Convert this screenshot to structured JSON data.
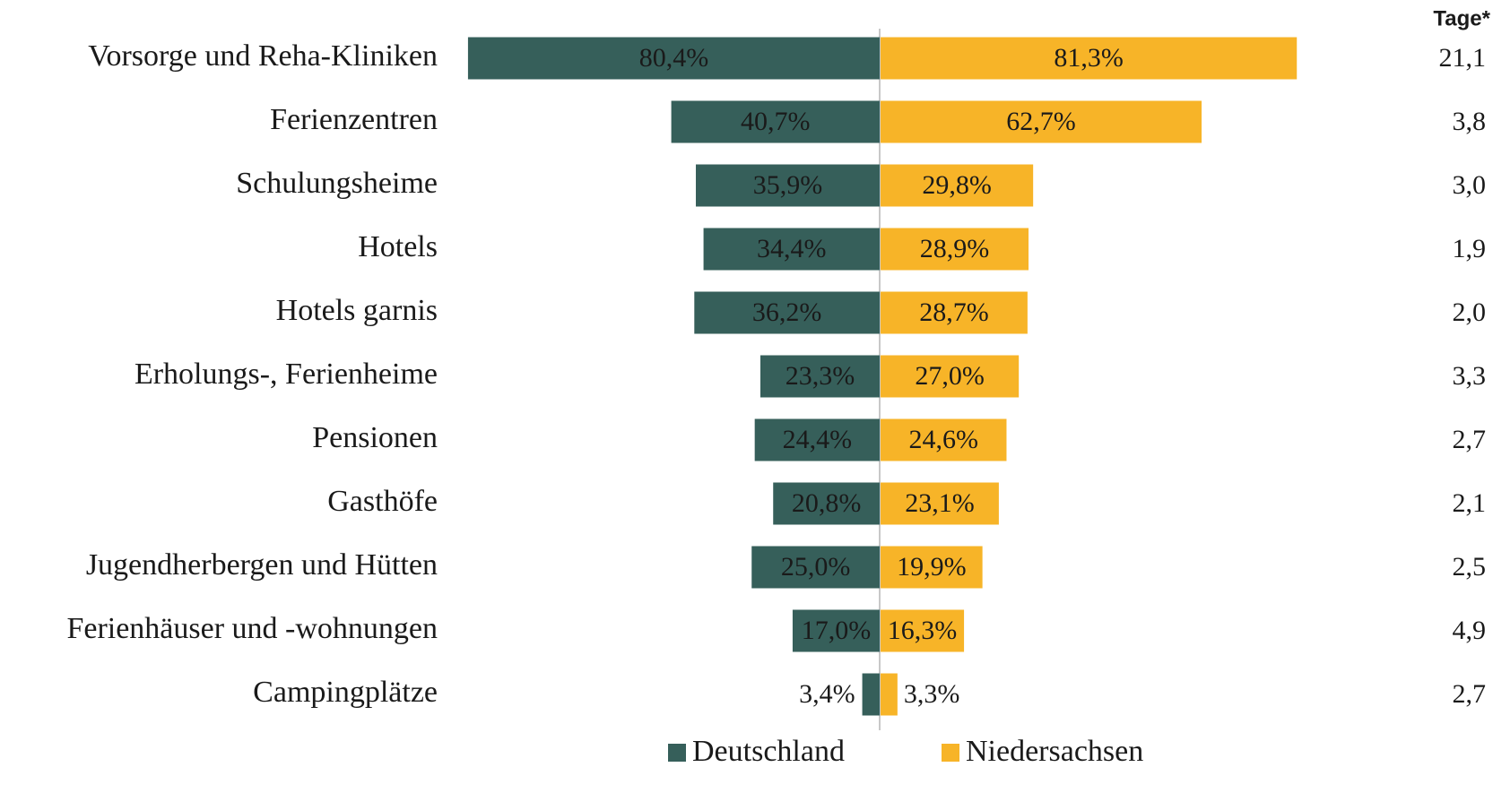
{
  "chart_data": {
    "type": "diverging-bar",
    "categories": [
      "Vorsorge und Reha-Kliniken",
      "Ferienzentren",
      "Schulungsheime",
      "Hotels",
      "Hotels garnis",
      "Erholungs-, Ferienheime",
      "Pensionen",
      "Gasthöfe",
      "Jugendherbergen und Hütten",
      "Ferienhäuser und -wohnungen",
      "Campingplätze"
    ],
    "series": [
      {
        "name": "Deutschland",
        "color": "#365f5a",
        "values": [
          80.4,
          40.7,
          35.9,
          34.4,
          36.2,
          23.3,
          24.4,
          20.8,
          25.0,
          17.0,
          3.4
        ],
        "value_labels": [
          "80,4%",
          "40,7%",
          "35,9%",
          "34,4%",
          "36,2%",
          "23,3%",
          "24,4%",
          "20,8%",
          "25,0%",
          "17,0%",
          "3,4%"
        ]
      },
      {
        "name": "Niedersachsen",
        "color": "#f7b428",
        "values": [
          81.3,
          62.7,
          29.8,
          28.9,
          28.7,
          27.0,
          24.6,
          23.1,
          19.9,
          16.3,
          3.3
        ],
        "value_labels": [
          "81,3%",
          "62,7%",
          "29,8%",
          "28,9%",
          "28,7%",
          "27,0%",
          "24,6%",
          "23,1%",
          "19,9%",
          "16,3%",
          "3,3%"
        ]
      }
    ],
    "side_column": {
      "title": "Tage*",
      "values": [
        21.1,
        3.8,
        3.0,
        1.9,
        2.0,
        3.3,
        2.7,
        2.1,
        2.5,
        4.9,
        2.7
      ],
      "value_labels": [
        "21,1",
        "3,8",
        "3,0",
        "1,9",
        "2,0",
        "3,3",
        "2,7",
        "2,1",
        "2,5",
        "4,9",
        "2,7"
      ]
    },
    "legend": "bottom"
  }
}
